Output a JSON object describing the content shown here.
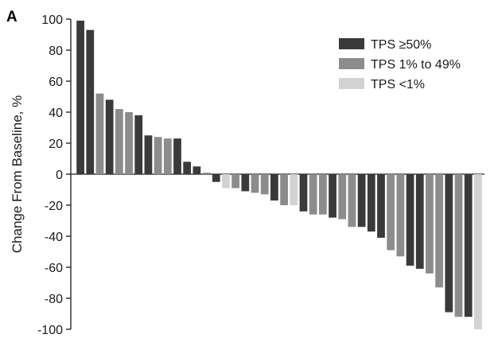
{
  "panel_label": "A",
  "colors": {
    "tps_high": "#3a3a3a",
    "tps_mid": "#8c8c8c",
    "tps_low": "#d2d2d2",
    "axis": "#1a1a1a"
  },
  "chart_data": {
    "type": "bar",
    "title": "",
    "xlabel": "",
    "ylabel": "Change From Baseline, %",
    "ylim": [
      -100,
      100
    ],
    "yticks": [
      100,
      80,
      60,
      40,
      20,
      0,
      -20,
      -40,
      -60,
      -80,
      -100
    ],
    "ytick_labels": [
      "100",
      "80",
      "60",
      "40",
      "20",
      "0",
      "-20",
      "-40",
      "-60",
      "-80",
      "-100"
    ],
    "grid": false,
    "legend_position": "top-right",
    "legend": [
      {
        "key": "high",
        "label": "TPS ≥50%",
        "color": "#3a3a3a"
      },
      {
        "key": "mid",
        "label": "TPS 1% to 49%",
        "color": "#8c8c8c"
      },
      {
        "key": "low",
        "label": "TPS <1%",
        "color": "#d2d2d2"
      }
    ],
    "bars": [
      {
        "value": 99,
        "group": "high"
      },
      {
        "value": 93,
        "group": "high"
      },
      {
        "value": 52,
        "group": "mid"
      },
      {
        "value": 48,
        "group": "high"
      },
      {
        "value": 42,
        "group": "mid"
      },
      {
        "value": 40,
        "group": "mid"
      },
      {
        "value": 38,
        "group": "high"
      },
      {
        "value": 25,
        "group": "high"
      },
      {
        "value": 24,
        "group": "mid"
      },
      {
        "value": 23,
        "group": "mid"
      },
      {
        "value": 23,
        "group": "high"
      },
      {
        "value": 8,
        "group": "high"
      },
      {
        "value": 5,
        "group": "high"
      },
      {
        "value": 1,
        "group": "mid"
      },
      {
        "value": -5,
        "group": "high"
      },
      {
        "value": -9,
        "group": "low"
      },
      {
        "value": -9,
        "group": "mid"
      },
      {
        "value": -11,
        "group": "high"
      },
      {
        "value": -12,
        "group": "mid"
      },
      {
        "value": -13,
        "group": "mid"
      },
      {
        "value": -17,
        "group": "high"
      },
      {
        "value": -20,
        "group": "mid"
      },
      {
        "value": -20,
        "group": "low"
      },
      {
        "value": -24,
        "group": "high"
      },
      {
        "value": -26,
        "group": "mid"
      },
      {
        "value": -26,
        "group": "mid"
      },
      {
        "value": -28,
        "group": "high"
      },
      {
        "value": -29,
        "group": "mid"
      },
      {
        "value": -34,
        "group": "mid"
      },
      {
        "value": -34,
        "group": "high"
      },
      {
        "value": -37,
        "group": "high"
      },
      {
        "value": -41,
        "group": "high"
      },
      {
        "value": -49,
        "group": "mid"
      },
      {
        "value": -53,
        "group": "mid"
      },
      {
        "value": -59,
        "group": "high"
      },
      {
        "value": -61,
        "group": "high"
      },
      {
        "value": -64,
        "group": "mid"
      },
      {
        "value": -73,
        "group": "mid"
      },
      {
        "value": -89,
        "group": "high"
      },
      {
        "value": -92,
        "group": "mid"
      },
      {
        "value": -92,
        "group": "high"
      },
      {
        "value": -100,
        "group": "low"
      }
    ]
  }
}
